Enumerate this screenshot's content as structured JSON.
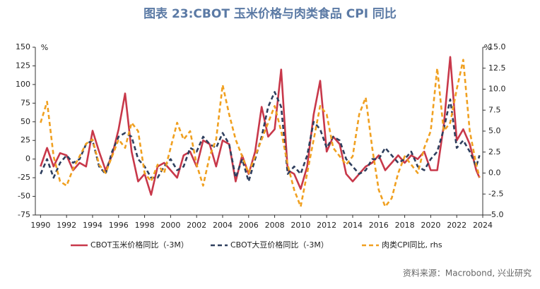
{
  "chart_data": {
    "type": "line",
    "title": "图表 23:CBOT 玉米价格与肉类食品 CPI 同比",
    "source": "资料来源：Macrobond, 兴业研究",
    "y_unit": "%",
    "y2_unit": "%",
    "x": [
      1990,
      1990.5,
      1991,
      1991.5,
      1992,
      1992.5,
      1993,
      1993.5,
      1994,
      1994.5,
      1995,
      1995.5,
      1996,
      1996.5,
      1997,
      1997.5,
      1998,
      1998.5,
      1999,
      1999.5,
      2000,
      2000.5,
      2001,
      2001.5,
      2002,
      2002.5,
      2003,
      2003.5,
      2004,
      2004.5,
      2005,
      2005.5,
      2006,
      2006.5,
      2007,
      2007.5,
      2008,
      2008.5,
      2009,
      2009.5,
      2010,
      2010.5,
      2011,
      2011.5,
      2012,
      2012.5,
      2013,
      2013.5,
      2014,
      2014.5,
      2015,
      2015.5,
      2016,
      2016.5,
      2017,
      2017.5,
      2018,
      2018.5,
      2019,
      2019.5,
      2020,
      2020.5,
      2021,
      2021.5,
      2022,
      2022.5,
      2023,
      2023.5,
      2023.75
    ],
    "series": [
      {
        "name": "CBOT玉米价格同比（-3M）",
        "color": "#c8384a",
        "dash": false,
        "axis": "y",
        "values": [
          -10,
          15,
          -10,
          8,
          5,
          -15,
          -5,
          -10,
          38,
          10,
          -15,
          5,
          40,
          88,
          10,
          -30,
          -20,
          -48,
          -10,
          -5,
          -15,
          -25,
          5,
          10,
          -10,
          25,
          20,
          -10,
          25,
          20,
          -30,
          5,
          -20,
          10,
          70,
          30,
          40,
          120,
          -15,
          -20,
          -40,
          -10,
          60,
          105,
          10,
          30,
          20,
          -20,
          -30,
          -20,
          -10,
          -5,
          5,
          -15,
          -5,
          5,
          -5,
          5,
          0,
          10,
          -15,
          -15,
          45,
          137,
          25,
          40,
          20,
          -15,
          -25
        ]
      },
      {
        "name": "CBOT大豆价格同比（-3M）",
        "color": "#2f3f5e",
        "dash": true,
        "axis": "y",
        "values": [
          -20,
          0,
          -25,
          -5,
          5,
          -5,
          0,
          20,
          25,
          -10,
          -20,
          10,
          30,
          35,
          30,
          0,
          -10,
          -25,
          -25,
          -10,
          0,
          -15,
          -10,
          15,
          10,
          30,
          20,
          15,
          35,
          20,
          -25,
          0,
          -30,
          0,
          30,
          70,
          90,
          70,
          -20,
          -10,
          -20,
          5,
          50,
          40,
          15,
          30,
          25,
          0,
          -10,
          -20,
          -15,
          0,
          0,
          15,
          5,
          -5,
          0,
          10,
          -10,
          -15,
          0,
          10,
          40,
          80,
          15,
          25,
          10,
          -10,
          5
        ]
      },
      {
        "name": "肉类CPI同比, rhs",
        "color": "#f0a020",
        "dash": true,
        "axis": "y2",
        "values": [
          6,
          8.5,
          2,
          -1,
          -1.5,
          0.5,
          2,
          3.5,
          4,
          1,
          0,
          2,
          4,
          3,
          6,
          5,
          0,
          -1,
          1,
          0,
          3,
          6,
          4,
          5,
          1,
          -1.5,
          2,
          4,
          10.5,
          7,
          4,
          2,
          0,
          2,
          4,
          6,
          8,
          5,
          1,
          -2,
          -4,
          0,
          4,
          8,
          7,
          3,
          2,
          1,
          2,
          7,
          9,
          3,
          -2,
          -4,
          -3,
          0,
          2,
          1,
          0,
          3,
          5,
          12.5,
          5,
          6,
          10,
          13.5,
          5,
          1,
          -0.5
        ]
      }
    ],
    "xlim": [
      1989.6,
      2024.0
    ],
    "xticks": [
      1990,
      1992,
      1994,
      1996,
      1998,
      2000,
      2002,
      2004,
      2006,
      2008,
      2010,
      2012,
      2014,
      2016,
      2018,
      2020,
      2022,
      2024
    ],
    "ylim": [
      -75,
      150
    ],
    "yticks": [
      150,
      125,
      100,
      75,
      50,
      25,
      0,
      -25,
      -50,
      -75
    ],
    "y2lim": [
      -5,
      15
    ],
    "y2ticks": [
      {
        "value": 15,
        "label": "15.0"
      },
      {
        "value": 12.5,
        "label": "12.5"
      },
      {
        "value": 10,
        "label": "10.0"
      },
      {
        "value": 7.5,
        "label": "7.5"
      },
      {
        "value": 5,
        "label": "5.0"
      },
      {
        "value": 2.5,
        "label": "2.5"
      },
      {
        "value": 0,
        "label": "0.0"
      },
      {
        "value": -2.5,
        "label": "-2.5"
      },
      {
        "value": -5,
        "label": "-5.0"
      }
    ],
    "legend": "bottom"
  }
}
